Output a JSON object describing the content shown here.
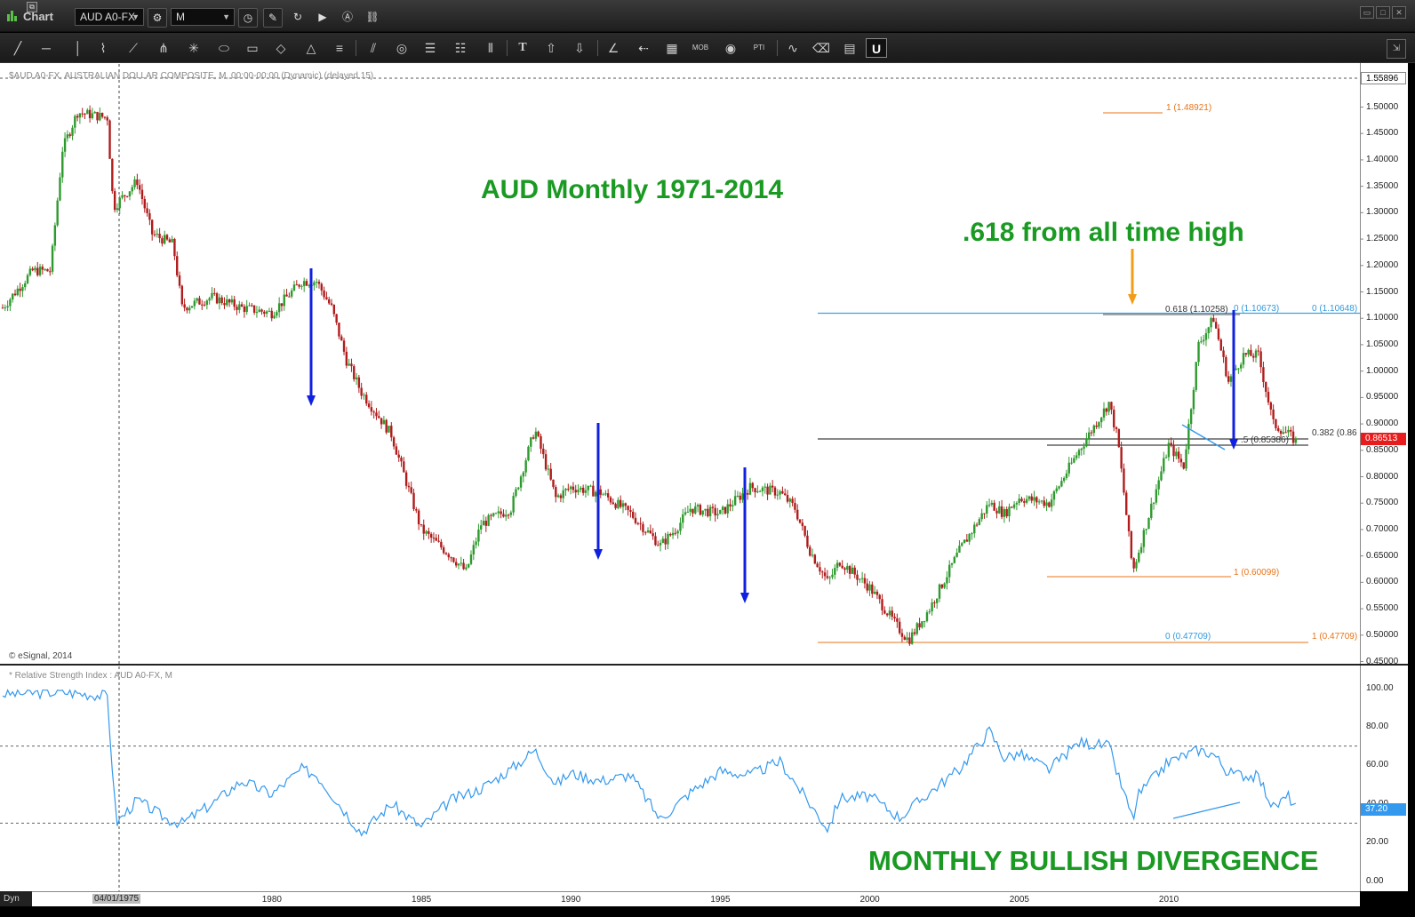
{
  "window": {
    "app_title": "Chart",
    "symbol": "AUD A0-FX",
    "interval": "M",
    "controls": [
      "minimize-icon",
      "maximize-icon",
      "close-icon"
    ]
  },
  "toolbar": {
    "tools": [
      "line-tool-icon",
      "horizontal-line-icon",
      "vertical-line-icon",
      "polyline-icon",
      "fan-icon",
      "pitchfork-icon",
      "gann-icon",
      "ellipse-icon",
      "rectangle-icon",
      "diamond-icon",
      "triangle-icon",
      "channel-icon",
      "parallel-lines-icon",
      "circles-icon",
      "fib-retracement-icon",
      "fib-extension-icon",
      "fib-time-icon",
      "text-icon",
      "arrow-up-icon",
      "arrow-down-icon",
      "angle-icon",
      "arrow-left-icon",
      "grid-icon",
      "mob-icon",
      "eye-icon",
      "pti-icon",
      "wave-icon",
      "eraser-icon",
      "comment-icon",
      "magnet-icon"
    ],
    "selected_label": "U"
  },
  "price_panel": {
    "study_note": "$AUD A0-FX, AUSTRALIAN DOLLAR COMPOSITE, M, 00:00-00:00 (Dynamic) (delayed 15)",
    "copyright": "© eSignal, 2014",
    "title_annotation": "AUD Monthly 1971-2014",
    "fib_annotation": ".618 from all time high",
    "top_price_label": "1.55896",
    "current_price_label": "0.86513",
    "y_ticks": [
      "1.50000",
      "1.45000",
      "1.40000",
      "1.35000",
      "1.30000",
      "1.25000",
      "1.20000",
      "1.15000",
      "1.10000",
      "1.05000",
      "1.00000",
      "0.95000",
      "0.90000",
      "0.85000",
      "0.80000",
      "0.75000",
      "0.70000",
      "0.65000",
      "0.60000",
      "0.55000",
      "0.50000",
      "0.45000"
    ],
    "levels": [
      {
        "text": "1 (1.48921)",
        "color": "#e8741a"
      },
      {
        "text": "0.618 (1.10258)",
        "color": "#333333"
      },
      {
        "text": "0 (1.10673)",
        "color": "#3399dd"
      },
      {
        "text": "0 (1.10648)",
        "color": "#3399dd"
      },
      {
        "text": "0.382 (0.86",
        "color": "#333333"
      },
      {
        "text": ".5 (0.85386)",
        "color": "#333333"
      },
      {
        "text": "1 (0.60099)",
        "color": "#e8741a"
      },
      {
        "text": "0 (0.47709)",
        "color": "#3399dd"
      },
      {
        "text": "1 (0.47709)",
        "color": "#e8741a"
      }
    ],
    "arrow_colors": {
      "down_arrows": "#1020e0",
      "fib_arrow": "#f39c1a"
    }
  },
  "rsi_panel": {
    "title": "* Relative Strength Index : AUD A0-FX, M",
    "annotation": "MONTHLY BULLISH DIVERGENCE",
    "y_ticks": [
      "100.00",
      "80.00",
      "60.00",
      "40.00",
      "20.00",
      "0.00"
    ],
    "current_value": "37.20",
    "line_color": "#3399ee"
  },
  "x_axis": {
    "dyn_label": "Dyn",
    "highlighted_date": "04/01/1975",
    "ticks": [
      "1980",
      "1985",
      "1990",
      "1995",
      "2000",
      "2005",
      "2010"
    ]
  },
  "chart_data": {
    "type": "line",
    "title": "AUD Monthly 1971-2014",
    "series": [
      {
        "name": "AUD A0-FX",
        "x": [
          1971.0,
          1972.0,
          1972.6,
          1973.0,
          1973.5,
          1974.5,
          1974.7,
          1975.5,
          1976.0,
          1976.7,
          1977.0,
          1978.0,
          1979.0,
          1980.0,
          1981.0,
          1981.5,
          1982.0,
          1982.5,
          1983.0,
          1984.0,
          1985.0,
          1986.0,
          1986.5,
          1987.0,
          1988.0,
          1988.8,
          1989.5,
          1990.0,
          1991.0,
          1992.0,
          1993.0,
          1993.5,
          1994.0,
          1995.0,
          1996.0,
          1997.0,
          1997.5,
          1998.0,
          1998.6,
          1999.0,
          2000.0,
          2001.0,
          2001.3,
          2002.0,
          2003.0,
          2004.0,
          2004.5,
          2005.0,
          2006.0,
          2007.0,
          2008.0,
          2008.3,
          2008.8,
          2009.0,
          2010.0,
          2010.5,
          2011.0,
          2011.5,
          2012.0,
          2012.5,
          2013.0,
          2013.5,
          2014.0,
          2014.3
        ],
        "y": [
          1.12,
          1.19,
          1.19,
          1.42,
          1.49,
          1.48,
          1.31,
          1.36,
          1.26,
          1.24,
          1.12,
          1.14,
          1.12,
          1.11,
          1.17,
          1.17,
          1.12,
          1.02,
          0.96,
          0.88,
          0.7,
          0.65,
          0.62,
          0.71,
          0.74,
          0.89,
          0.76,
          0.78,
          0.77,
          0.73,
          0.67,
          0.7,
          0.74,
          0.73,
          0.78,
          0.77,
          0.74,
          0.66,
          0.6,
          0.64,
          0.59,
          0.51,
          0.49,
          0.55,
          0.66,
          0.75,
          0.73,
          0.76,
          0.75,
          0.85,
          0.94,
          0.87,
          0.62,
          0.66,
          0.86,
          0.82,
          1.05,
          1.1,
          0.98,
          1.03,
          1.03,
          0.9,
          0.88,
          0.865
        ]
      },
      {
        "name": "Relative Strength Index",
        "x": [
          1971.0,
          1973.0,
          1974.5,
          1974.8,
          1975.5,
          1976.5,
          1977.0,
          1978.0,
          1979.0,
          1980.0,
          1981.0,
          1981.5,
          1982.0,
          1983.0,
          1984.0,
          1985.0,
          1986.0,
          1987.0,
          1988.0,
          1988.8,
          1989.5,
          1990.0,
          1991.0,
          1992.0,
          1993.0,
          1994.0,
          1995.0,
          1996.0,
          1997.0,
          1998.0,
          1998.6,
          1999.0,
          2000.0,
          2001.0,
          2002.0,
          2003.0,
          2004.0,
          2004.5,
          2005.0,
          2006.0,
          2007.0,
          2008.0,
          2008.3,
          2008.8,
          2009.0,
          2010.0,
          2011.0,
          2011.5,
          2012.0,
          2013.0,
          2013.5,
          2014.0,
          2014.3
        ],
        "y": [
          97,
          98,
          96,
          30,
          42,
          32,
          30,
          40,
          52,
          45,
          58,
          55,
          45,
          25,
          40,
          28,
          42,
          48,
          58,
          68,
          50,
          56,
          52,
          55,
          32,
          46,
          57,
          55,
          62,
          40,
          27,
          43,
          44,
          33,
          46,
          58,
          78,
          64,
          66,
          58,
          72,
          70,
          55,
          32,
          45,
          62,
          68,
          66,
          56,
          54,
          38,
          44,
          37.2
        ]
      }
    ],
    "ylim": [
      0.45,
      1.56
    ],
    "rsi_ylim": [
      0,
      100
    ],
    "grid": false
  }
}
